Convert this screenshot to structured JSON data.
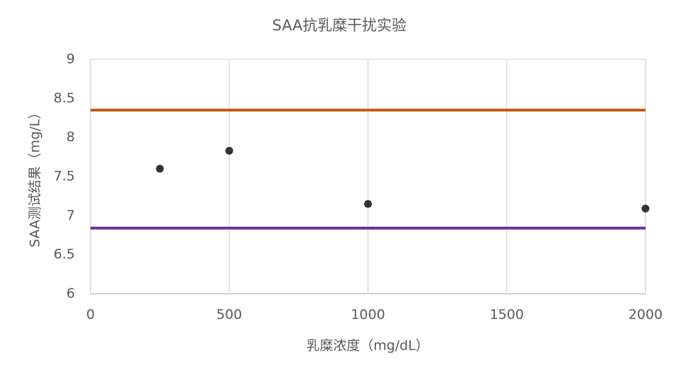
{
  "chart_data": {
    "type": "scatter",
    "title": "SAA抗乳糜干扰实验",
    "x_label": "乳糜浓度（mg/dL）",
    "y_label": "SAA测试结果（mg/L）",
    "series": [
      {
        "color": "#333333",
        "x": [
          250,
          500,
          1000,
          2000
        ],
        "values": [
          7.6,
          7.83,
          7.15,
          7.09
        ]
      }
    ],
    "reference_lines": [
      {
        "value": 8.35,
        "color": "#c55a11"
      },
      {
        "value": 6.84,
        "color": "#7030a0"
      }
    ],
    "xlim": [
      0,
      2000
    ],
    "xticks": [
      0,
      500,
      1000,
      1500,
      2000
    ],
    "ylim": [
      6,
      9
    ],
    "yticks": [
      6,
      6.5,
      7,
      7.5,
      8,
      8.5,
      9
    ],
    "grid": "x"
  }
}
